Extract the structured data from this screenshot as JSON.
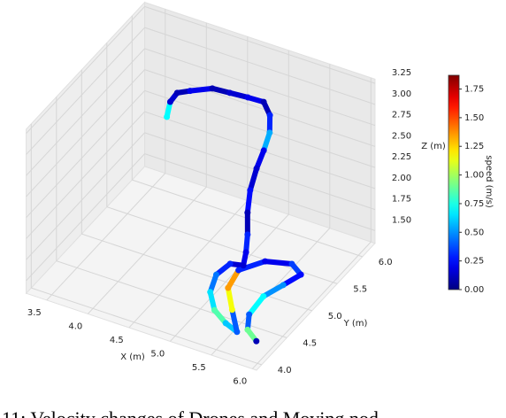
{
  "chart_data": {
    "type": "scatter3d",
    "x": [
      4.01,
      4.02,
      4.08,
      4.22,
      4.44,
      4.64,
      4.81,
      4.96,
      5.06,
      5.1,
      5.09,
      5.07,
      5.09,
      5.15,
      5.23,
      5.26,
      5.24,
      5.03,
      4.96,
      5.04,
      5.22,
      5.43,
      5.61,
      5.41,
      5.22,
      5.2,
      5.37,
      5.64,
      5.78,
      5.67,
      5.57,
      5.58,
      5.69,
      5.87
    ],
    "y": [
      5.45,
      5.5,
      5.54,
      5.57,
      5.65,
      5.67,
      5.75,
      5.82,
      5.78,
      5.71,
      5.61,
      5.5,
      5.34,
      5.19,
      5.06,
      4.98,
      4.96,
      5.04,
      4.88,
      4.63,
      4.42,
      4.3,
      4.23,
      4.46,
      4.69,
      4.93,
      5.18,
      5.27,
      5.22,
      5.05,
      4.82,
      4.52,
      4.31,
      4.19
    ],
    "z": [
      2.7,
      2.85,
      2.95,
      3.0,
      3.05,
      3.05,
      3.0,
      2.95,
      2.85,
      2.7,
      2.55,
      2.4,
      2.25,
      2.1,
      1.95,
      1.8,
      1.65,
      1.55,
      1.5,
      1.48,
      1.46,
      1.45,
      1.45,
      1.5,
      1.55,
      1.6,
      1.6,
      1.6,
      1.55,
      1.5,
      1.48,
      1.46,
      1.45,
      1.45
    ],
    "speed": [
      0.7,
      0.15,
      0.1,
      0.2,
      0.1,
      0.15,
      0.2,
      0.1,
      0.3,
      0.55,
      0.2,
      0.15,
      0.25,
      0.1,
      0.3,
      0.2,
      0.15,
      0.3,
      0.45,
      0.65,
      0.85,
      0.6,
      0.4,
      1.15,
      1.35,
      0.3,
      0.2,
      0.35,
      0.25,
      0.5,
      0.7,
      0.4,
      0.9,
      0.1
    ],
    "xlim": [
      3.25,
      6.05
    ],
    "ylim": [
      3.9,
      6.25
    ],
    "zlim": [
      1.35,
      3.3
    ],
    "clim": [
      0,
      1.87
    ],
    "xticks": [
      3.5,
      {
        "value": 4,
        "label": "4.0"
      },
      4.5,
      {
        "value": 5,
        "label": "5.0"
      },
      5.5,
      {
        "value": 6,
        "label": "6.0"
      }
    ],
    "yticks": [
      {
        "value": 4,
        "label": "4.0"
      },
      4.5,
      {
        "value": 5,
        "label": "5.0"
      },
      5.5,
      {
        "value": 6,
        "label": "6.0"
      }
    ],
    "zticks": [
      {
        "value": 1.5,
        "label": "1.50"
      },
      1.75,
      {
        "value": 2,
        "label": "2.00"
      },
      2.25,
      {
        "value": 2.5,
        "label": "2.50"
      },
      2.75,
      {
        "value": 3,
        "label": "3.00"
      },
      3.25
    ],
    "cticks": [
      {
        "value": 0,
        "label": "0.00"
      },
      0.25,
      {
        "value": 0.5,
        "label": "0.50"
      },
      0.75,
      {
        "value": 1,
        "label": "1.00"
      },
      1.25,
      {
        "value": 1.5,
        "label": "1.50"
      },
      1.75
    ],
    "xlabel": "X (m)",
    "ylabel": "Y (m)",
    "zlabel": "Z (m)",
    "clabel": "speed (m/s)",
    "colormap": "jet",
    "grid": true,
    "caption": "11: Velocity changes of Drones and Moving nod"
  }
}
